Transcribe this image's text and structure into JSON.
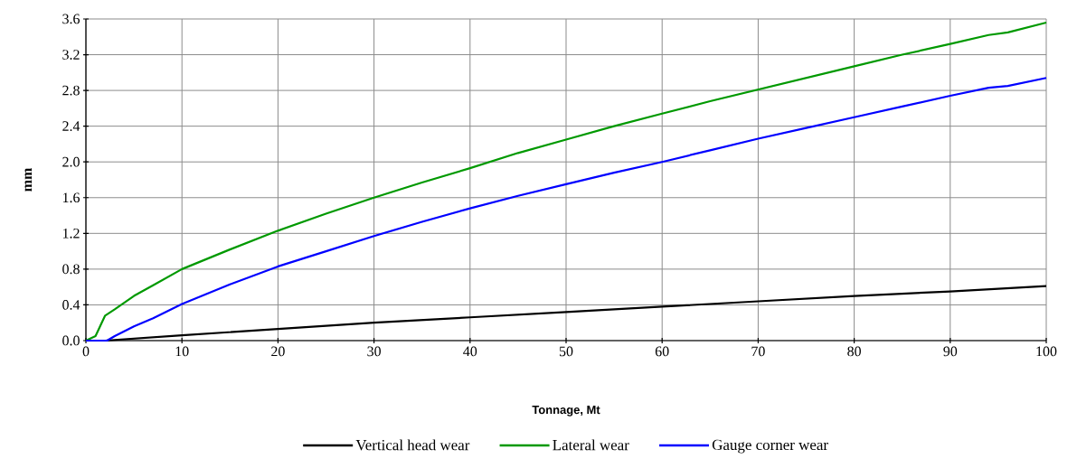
{
  "chart_data": {
    "type": "line",
    "xlabel": "Tonnage, Mt",
    "ylabel": "mm",
    "xlim": [
      0,
      100
    ],
    "xticks": [
      0,
      10,
      20,
      30,
      40,
      50,
      60,
      70,
      80,
      90,
      100
    ],
    "ylim": [
      0,
      3.6
    ],
    "yticks": [
      {
        "value": 0,
        "label": "0.0"
      },
      {
        "value": 0.4,
        "label": "0.4"
      },
      {
        "value": 0.8,
        "label": "0.8"
      },
      {
        "value": 1.2,
        "label": "1.2"
      },
      {
        "value": 1.6,
        "label": "1.6"
      },
      {
        "value": 2.0,
        "label": "2.0"
      },
      {
        "value": 2.4,
        "label": "2.4"
      },
      {
        "value": 2.8,
        "label": "2.8"
      },
      {
        "value": 3.2,
        "label": "3.2"
      },
      {
        "value": 3.6,
        "label": "3.6"
      }
    ],
    "grid": true,
    "legend": "bottom",
    "marker": "none",
    "line_style": "solid",
    "series": [
      {
        "name": "Vertical head wear",
        "color": "#000000",
        "x": [
          0,
          2,
          10,
          20,
          30,
          40,
          50,
          60,
          70,
          80,
          90,
          100
        ],
        "values": [
          0,
          0,
          0.06,
          0.13,
          0.2,
          0.26,
          0.32,
          0.38,
          0.44,
          0.5,
          0.55,
          0.61
        ]
      },
      {
        "name": "Lateral wear",
        "color": "#009900",
        "x": [
          0,
          1,
          2,
          3,
          5,
          7,
          10,
          15,
          20,
          25,
          30,
          35,
          40,
          45,
          50,
          55,
          60,
          65,
          70,
          75,
          80,
          85,
          90,
          94,
          96,
          100
        ],
        "values": [
          0,
          0.05,
          0.28,
          0.35,
          0.5,
          0.62,
          0.8,
          1.02,
          1.23,
          1.42,
          1.6,
          1.77,
          1.93,
          2.1,
          2.25,
          2.4,
          2.54,
          2.68,
          2.81,
          2.94,
          3.07,
          3.2,
          3.32,
          3.42,
          3.45,
          3.56
        ]
      },
      {
        "name": "Gauge corner wear",
        "color": "#0000ff",
        "x": [
          0,
          2.2,
          3,
          5,
          7,
          10,
          15,
          20,
          25,
          30,
          35,
          40,
          45,
          50,
          55,
          60,
          65,
          70,
          75,
          80,
          85,
          90,
          94,
          96,
          100
        ],
        "values": [
          0,
          0,
          0.05,
          0.16,
          0.25,
          0.41,
          0.63,
          0.83,
          1.0,
          1.17,
          1.33,
          1.48,
          1.62,
          1.75,
          1.88,
          2.0,
          2.13,
          2.26,
          2.38,
          2.5,
          2.62,
          2.74,
          2.83,
          2.85,
          2.94
        ]
      }
    ]
  }
}
